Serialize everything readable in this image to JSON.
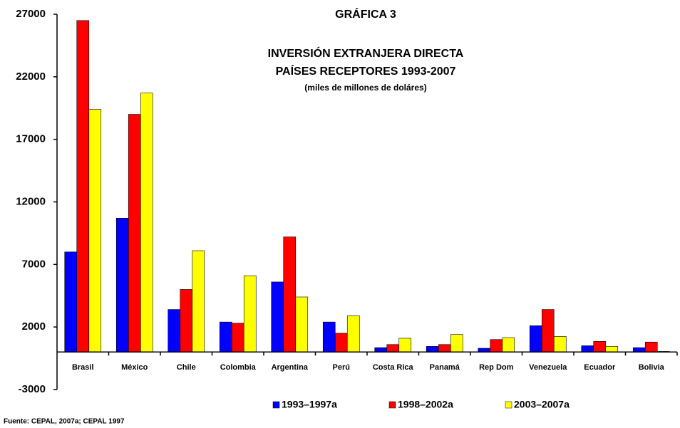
{
  "chart_data": {
    "type": "bar",
    "title": "GRÁFICA 3",
    "subtitle": [
      "INVERSIÓN EXTRANJERA DIRECTA",
      "PAÍSES RECEPTORES 1993-2007"
    ],
    "unit_note": "(miles de millones de doláres)",
    "source": "Fuente: CEPAL, 2007a; CEPAL 1997",
    "categories": [
      "Brasil",
      "México",
      "Chile",
      "Colombia",
      "Argentina",
      "Perú",
      "Costa Rica",
      "Panamá",
      "Rep Dom",
      "Venezuela",
      "Ecuador",
      "Bolivia"
    ],
    "series": [
      {
        "name": "1993–1997a",
        "color": "#0000ff",
        "values": [
          8000,
          10700,
          3400,
          2400,
          5600,
          2400,
          350,
          450,
          300,
          2100,
          500,
          350
        ]
      },
      {
        "name": "1998–2002a",
        "color": "#ff0000",
        "values": [
          26500,
          19000,
          5000,
          2300,
          9200,
          1500,
          600,
          600,
          1000,
          3400,
          850,
          800
        ]
      },
      {
        "name": "2003–2007a",
        "color": "#ffff00",
        "values": [
          19400,
          20700,
          8100,
          6100,
          4400,
          2900,
          1100,
          1400,
          1150,
          1250,
          450,
          50
        ]
      }
    ],
    "ylim": [
      -3000,
      27000
    ],
    "yticks": [
      -3000,
      2000,
      7000,
      12000,
      17000,
      22000,
      27000
    ],
    "legend": "bottom"
  }
}
